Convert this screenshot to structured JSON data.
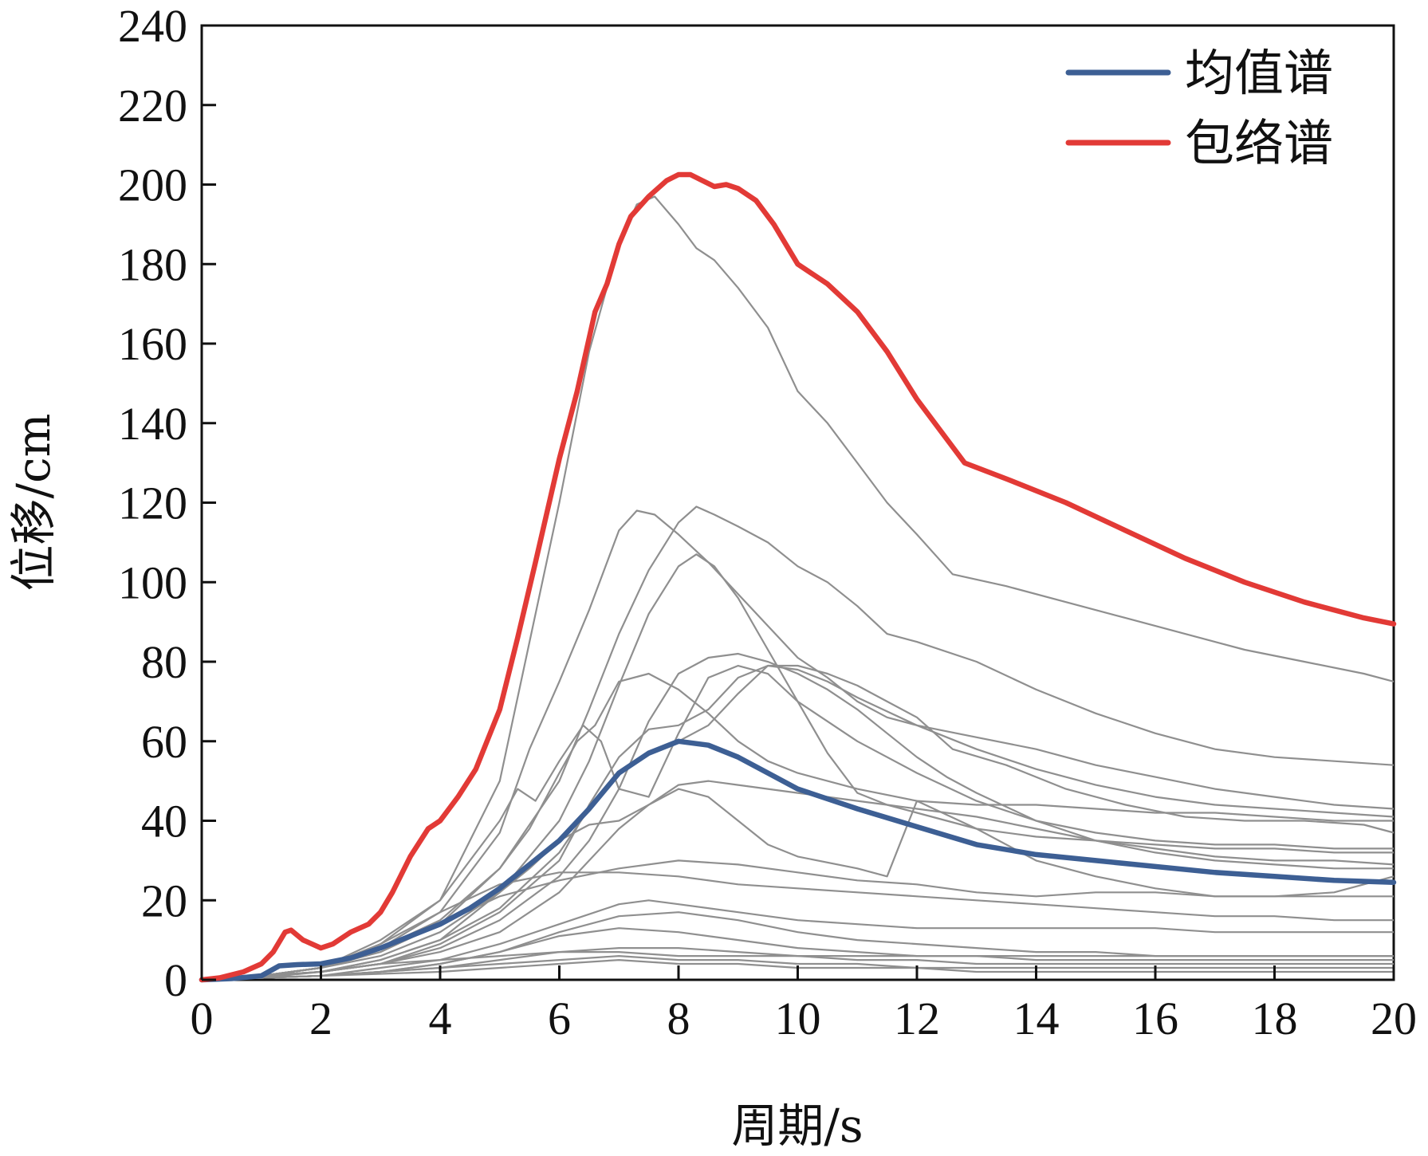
{
  "chart_data": {
    "type": "line",
    "title": "",
    "xlabel": "周期/s",
    "ylabel": "位移/cm",
    "xlim": [
      0,
      20
    ],
    "ylim": [
      0,
      240
    ],
    "xticks": [
      0,
      2,
      4,
      6,
      8,
      10,
      12,
      14,
      16,
      18,
      20
    ],
    "yticks": [
      0,
      20,
      40,
      60,
      80,
      100,
      120,
      140,
      160,
      180,
      200,
      220,
      240
    ],
    "grid": false,
    "legend_position": "top-right",
    "colors": {
      "mean": "#3d5f94",
      "envelope": "#e23a36",
      "records": "#8f8f8f",
      "axis": "#111111"
    },
    "series": [
      {
        "name": "均值谱",
        "role": "mean",
        "x": [
          0,
          0.5,
          1.0,
          1.3,
          1.6,
          2.0,
          2.5,
          3.0,
          3.5,
          4.0,
          4.5,
          5.0,
          5.5,
          6.0,
          6.5,
          7.0,
          7.5,
          8.0,
          8.5,
          9.0,
          9.5,
          10.0,
          11.0,
          12.0,
          13.0,
          14.0,
          15.0,
          16.0,
          17.0,
          18.0,
          19.0,
          20.0
        ],
        "y": [
          0,
          0.3,
          1.0,
          3.5,
          3.8,
          4.0,
          5.5,
          8,
          11,
          14,
          18,
          23,
          29,
          35,
          43,
          52,
          57,
          60,
          59,
          56,
          52,
          48,
          43,
          38.5,
          34,
          31.5,
          30,
          28.5,
          27,
          26,
          25,
          24.5
        ]
      },
      {
        "name": "包络谱",
        "role": "envelope",
        "x": [
          0,
          0.3,
          0.7,
          1.0,
          1.2,
          1.4,
          1.5,
          1.7,
          2.0,
          2.2,
          2.5,
          2.8,
          3.0,
          3.2,
          3.5,
          3.8,
          4.0,
          4.3,
          4.6,
          5.0,
          5.3,
          5.6,
          6.0,
          6.3,
          6.6,
          6.8,
          7.0,
          7.2,
          7.5,
          7.8,
          8.0,
          8.2,
          8.4,
          8.6,
          8.8,
          9.0,
          9.3,
          9.6,
          10.0,
          10.5,
          11.0,
          11.5,
          12.0,
          12.5,
          12.8,
          13.5,
          14.5,
          15.5,
          16.5,
          17.5,
          18.5,
          19.5,
          20.0
        ],
        "y": [
          0,
          0.5,
          2,
          4,
          7,
          12,
          12.5,
          10,
          8,
          9,
          12,
          14,
          17,
          22,
          31,
          38,
          40,
          46,
          53,
          68,
          86,
          105,
          131,
          148,
          168,
          175,
          185,
          192,
          197,
          201,
          202.5,
          202.5,
          201,
          199.5,
          200,
          199,
          196,
          190,
          180,
          175,
          168,
          158,
          146,
          136,
          130,
          126,
          120,
          113,
          106,
          100,
          95,
          91,
          89.5
        ]
      },
      {
        "name": "",
        "role": "record",
        "x": [
          0,
          1,
          2,
          3,
          4,
          5,
          6,
          6.5,
          7,
          7.3,
          7.6,
          8,
          8.3,
          8.6,
          9,
          9.5,
          10,
          10.5,
          11,
          11.5,
          12,
          12.6,
          13.5,
          14.5,
          15.5,
          16.5,
          17.5,
          18.5,
          19.5,
          20
        ],
        "y": [
          0,
          1,
          3,
          10,
          20,
          50,
          120,
          158,
          185,
          195,
          197,
          190,
          184,
          181,
          174,
          164,
          148,
          140,
          130,
          120,
          112,
          102,
          99,
          95,
          91,
          87,
          83,
          80,
          77,
          75
        ]
      },
      {
        "name": "",
        "role": "record",
        "x": [
          0,
          1,
          2,
          3,
          4,
          5,
          5.5,
          6,
          6.5,
          7,
          7.3,
          7.6,
          8,
          8.5,
          9,
          9.5,
          10,
          10.5,
          11,
          11.5,
          12,
          13,
          14,
          15,
          16,
          17,
          18,
          19,
          20
        ],
        "y": [
          0,
          1,
          3,
          9,
          17,
          37,
          58,
          75,
          93,
          113,
          118,
          117,
          112,
          105,
          97,
          89,
          81,
          76,
          70,
          66,
          64,
          61,
          58,
          54,
          51,
          48,
          46,
          44,
          43
        ]
      },
      {
        "name": "",
        "role": "record",
        "x": [
          0,
          1,
          2,
          3,
          4,
          5,
          6,
          6.5,
          7,
          7.5,
          8,
          8.3,
          8.6,
          9,
          9.5,
          10,
          10.5,
          11,
          11.5,
          12,
          13,
          14,
          15,
          16,
          17,
          18,
          19,
          20
        ],
        "y": [
          0,
          1,
          3,
          8,
          14,
          28,
          50,
          68,
          87,
          103,
          115,
          119,
          117,
          114,
          110,
          104,
          100,
          94,
          87,
          85,
          80,
          73,
          67,
          62,
          58,
          56,
          55,
          54
        ]
      },
      {
        "name": "",
        "role": "record",
        "x": [
          0,
          1,
          2,
          3,
          4,
          5,
          6,
          6.5,
          7,
          7.5,
          8,
          8.3,
          8.6,
          9,
          9.5,
          10,
          10.5,
          11,
          11.5,
          12,
          13,
          14,
          15,
          16,
          17,
          18,
          19,
          20
        ],
        "y": [
          0,
          1,
          3,
          6,
          12,
          22,
          40,
          55,
          74,
          92,
          104,
          107,
          104,
          96,
          83,
          70,
          57,
          47,
          44,
          42,
          38,
          36,
          35,
          34,
          33,
          33,
          32,
          32
        ]
      },
      {
        "name": "",
        "role": "record",
        "x": [
          0,
          1,
          2,
          3,
          4,
          5,
          6,
          6.5,
          7,
          7.5,
          8,
          8.5,
          9,
          9.5,
          10,
          10.5,
          11,
          11.5,
          12,
          12.5,
          13,
          14,
          15,
          16,
          17,
          18,
          19,
          20
        ],
        "y": [
          0,
          1,
          2,
          4,
          8,
          15,
          26,
          35,
          48,
          65,
          77,
          81,
          82,
          80,
          77,
          73,
          68,
          62,
          56,
          51,
          47,
          40,
          35,
          32,
          30,
          29,
          28,
          28
        ]
      },
      {
        "name": "",
        "role": "record",
        "x": [
          0,
          1,
          2,
          3,
          4,
          5,
          6,
          6.5,
          7,
          7.5,
          8,
          8.5,
          9,
          9.5,
          10,
          10.5,
          11,
          11.5,
          12,
          12.6,
          13.5,
          14.5,
          15.5,
          16.5,
          17.5,
          18.5,
          19.5,
          20
        ],
        "y": [
          0,
          1,
          2,
          5,
          10,
          18,
          32,
          43,
          52,
          57,
          60,
          64,
          72,
          79,
          79,
          77,
          74,
          70,
          66,
          58,
          54,
          48,
          44,
          41,
          40,
          40,
          39,
          37
        ]
      },
      {
        "name": "",
        "role": "record",
        "x": [
          0,
          1,
          2,
          3,
          4,
          5,
          6,
          6.5,
          7,
          7.5,
          8,
          8.5,
          9,
          9.5,
          10,
          10.5,
          11,
          12,
          13,
          14,
          15,
          16,
          17,
          18,
          19,
          20
        ],
        "y": [
          0,
          1,
          2,
          4,
          9,
          17,
          30,
          44,
          56,
          63,
          64,
          68,
          76,
          79,
          78,
          75,
          71,
          64,
          58,
          53,
          49,
          46,
          44,
          43,
          42,
          41
        ]
      },
      {
        "name": "",
        "role": "record",
        "x": [
          0,
          1,
          2,
          3,
          4,
          5,
          5.5,
          6,
          6.3,
          6.6,
          7,
          7.5,
          8,
          8.5,
          9,
          9.5,
          10,
          11,
          12,
          13,
          14,
          15,
          16,
          17,
          18,
          19,
          20
        ],
        "y": [
          0,
          1,
          3,
          8,
          15,
          28,
          38,
          52,
          60,
          64,
          75,
          77,
          73,
          67,
          60,
          55,
          52,
          48,
          45,
          44,
          44,
          43,
          42,
          42,
          41,
          40,
          40
        ]
      },
      {
        "name": "",
        "role": "record",
        "x": [
          0,
          1,
          2,
          3,
          4,
          5,
          5.3,
          5.6,
          6,
          6.4,
          6.7,
          7,
          7.5,
          8,
          8.5,
          9,
          9.5,
          10,
          11,
          12,
          13,
          14,
          15,
          16,
          17,
          18,
          19,
          20
        ],
        "y": [
          0,
          1,
          3,
          9,
          20,
          40,
          48,
          45,
          55,
          64,
          60,
          48,
          46,
          62,
          76,
          79,
          77,
          70,
          60,
          52,
          45,
          40,
          37,
          35,
          34,
          34,
          33,
          33
        ]
      },
      {
        "name": "",
        "role": "record",
        "x": [
          0,
          1,
          2,
          3,
          4,
          5,
          6,
          6.5,
          7,
          7.5,
          8,
          8.5,
          9,
          9.5,
          10,
          10.5,
          11,
          11.5,
          12,
          13,
          14,
          15,
          16,
          17,
          18,
          19,
          20
        ],
        "y": [
          0,
          1,
          2,
          4,
          7,
          12,
          22,
          30,
          38,
          44,
          49,
          50,
          49,
          48,
          47,
          46,
          45,
          44,
          43,
          41,
          38,
          35,
          33,
          31,
          30,
          30,
          29
        ]
      },
      {
        "name": "",
        "role": "record",
        "x": [
          0,
          1,
          2,
          3,
          4,
          5,
          5.5,
          6,
          6.5,
          7,
          7.5,
          8,
          8.5,
          9,
          9.5,
          10,
          11,
          11.5,
          12,
          13,
          14,
          15,
          16,
          17,
          18,
          19,
          20
        ],
        "y": [
          0,
          1,
          2,
          5,
          10,
          22,
          28,
          35,
          39,
          40,
          44,
          48,
          46,
          40,
          34,
          31,
          28,
          26,
          45,
          38,
          30,
          26,
          23,
          21,
          21,
          22,
          26
        ]
      },
      {
        "name": "",
        "role": "record",
        "x": [
          0,
          1,
          2,
          3,
          4,
          5,
          6,
          7,
          8,
          9,
          10,
          11,
          12,
          13,
          14,
          15,
          16,
          17,
          18,
          19,
          20
        ],
        "y": [
          0,
          1,
          3,
          7,
          14,
          21,
          25,
          28,
          30,
          29,
          27,
          25,
          24,
          22,
          21,
          22,
          22,
          21,
          21,
          21,
          21
        ]
      },
      {
        "name": "",
        "role": "record",
        "x": [
          0,
          1,
          2,
          3,
          4,
          5,
          6,
          7,
          8,
          9,
          10,
          11,
          12,
          13,
          14,
          15,
          16,
          17,
          18,
          19,
          20
        ],
        "y": [
          0,
          1,
          3,
          8,
          17,
          24,
          27,
          27,
          26,
          24,
          23,
          22,
          21,
          20,
          19,
          18,
          17,
          16,
          16,
          15,
          15
        ]
      },
      {
        "name": "",
        "role": "record",
        "x": [
          0,
          1,
          2,
          3,
          4,
          5,
          6,
          7,
          7.5,
          8,
          9,
          10,
          11,
          12,
          13,
          14,
          15,
          16,
          17,
          18,
          19,
          20
        ],
        "y": [
          0,
          0.5,
          1,
          3,
          5,
          9,
          14,
          19,
          20,
          19,
          17,
          15,
          14,
          13,
          13,
          13,
          13,
          13,
          12,
          12,
          12,
          12
        ]
      },
      {
        "name": "",
        "role": "record",
        "x": [
          0,
          1,
          2,
          3,
          4,
          5,
          6,
          7,
          8,
          9,
          10,
          11,
          12,
          13,
          14,
          15,
          16,
          17,
          18,
          19,
          20
        ],
        "y": [
          0,
          0.5,
          1,
          2,
          4,
          7,
          12,
          16,
          17,
          15,
          12,
          10,
          9,
          8,
          7,
          7,
          6,
          6,
          6,
          6,
          6
        ]
      },
      {
        "name": "",
        "role": "record",
        "x": [
          0,
          1,
          2,
          3,
          4,
          5,
          6,
          7,
          8,
          9,
          10,
          11,
          12,
          13,
          14,
          15,
          16,
          17,
          18,
          19,
          20
        ],
        "y": [
          0,
          0.5,
          1,
          2,
          4,
          7,
          11,
          13,
          12,
          10,
          8,
          7,
          6,
          6,
          5,
          5,
          5,
          5,
          5,
          5,
          5
        ]
      },
      {
        "name": "",
        "role": "record",
        "x": [
          0,
          1,
          2,
          3,
          4,
          5,
          6,
          7,
          8,
          9,
          10,
          11,
          12,
          13,
          14,
          15,
          16,
          17,
          18,
          19,
          20
        ],
        "y": [
          0,
          0.5,
          1,
          2,
          3,
          5,
          7,
          8,
          8,
          7,
          6,
          5,
          5,
          4,
          4,
          4,
          4,
          4,
          4,
          4,
          4
        ]
      },
      {
        "name": "",
        "role": "record",
        "x": [
          0,
          1,
          2,
          3,
          4,
          5,
          6,
          7,
          8,
          9,
          10,
          11,
          12,
          13,
          14,
          15,
          16,
          17,
          18,
          19,
          20
        ],
        "y": [
          0,
          0.5,
          1,
          2,
          3,
          4,
          5,
          6,
          5,
          5,
          4,
          4,
          3,
          3,
          3,
          3,
          3,
          3,
          3,
          3,
          3
        ]
      },
      {
        "name": "",
        "role": "record",
        "x": [
          0,
          1,
          2,
          3,
          4,
          5,
          6,
          7,
          8,
          9,
          10,
          11,
          12,
          13,
          14,
          15,
          16,
          17,
          18,
          19,
          20
        ],
        "y": [
          0,
          0.5,
          2,
          4,
          5,
          6,
          7,
          7,
          6,
          6,
          6,
          6,
          6,
          6,
          6,
          6,
          6,
          6,
          6,
          6,
          6
        ]
      },
      {
        "name": "",
        "role": "record",
        "x": [
          0,
          1,
          2,
          3,
          4,
          5,
          6,
          7,
          8,
          9,
          10,
          11,
          12,
          13,
          14,
          15,
          16,
          17,
          18,
          19,
          20
        ],
        "y": [
          0,
          0.5,
          1,
          1.5,
          2,
          3,
          4,
          5,
          4,
          4,
          3,
          3,
          3,
          2,
          2,
          2,
          2,
          2,
          2,
          2,
          2
        ]
      }
    ]
  }
}
